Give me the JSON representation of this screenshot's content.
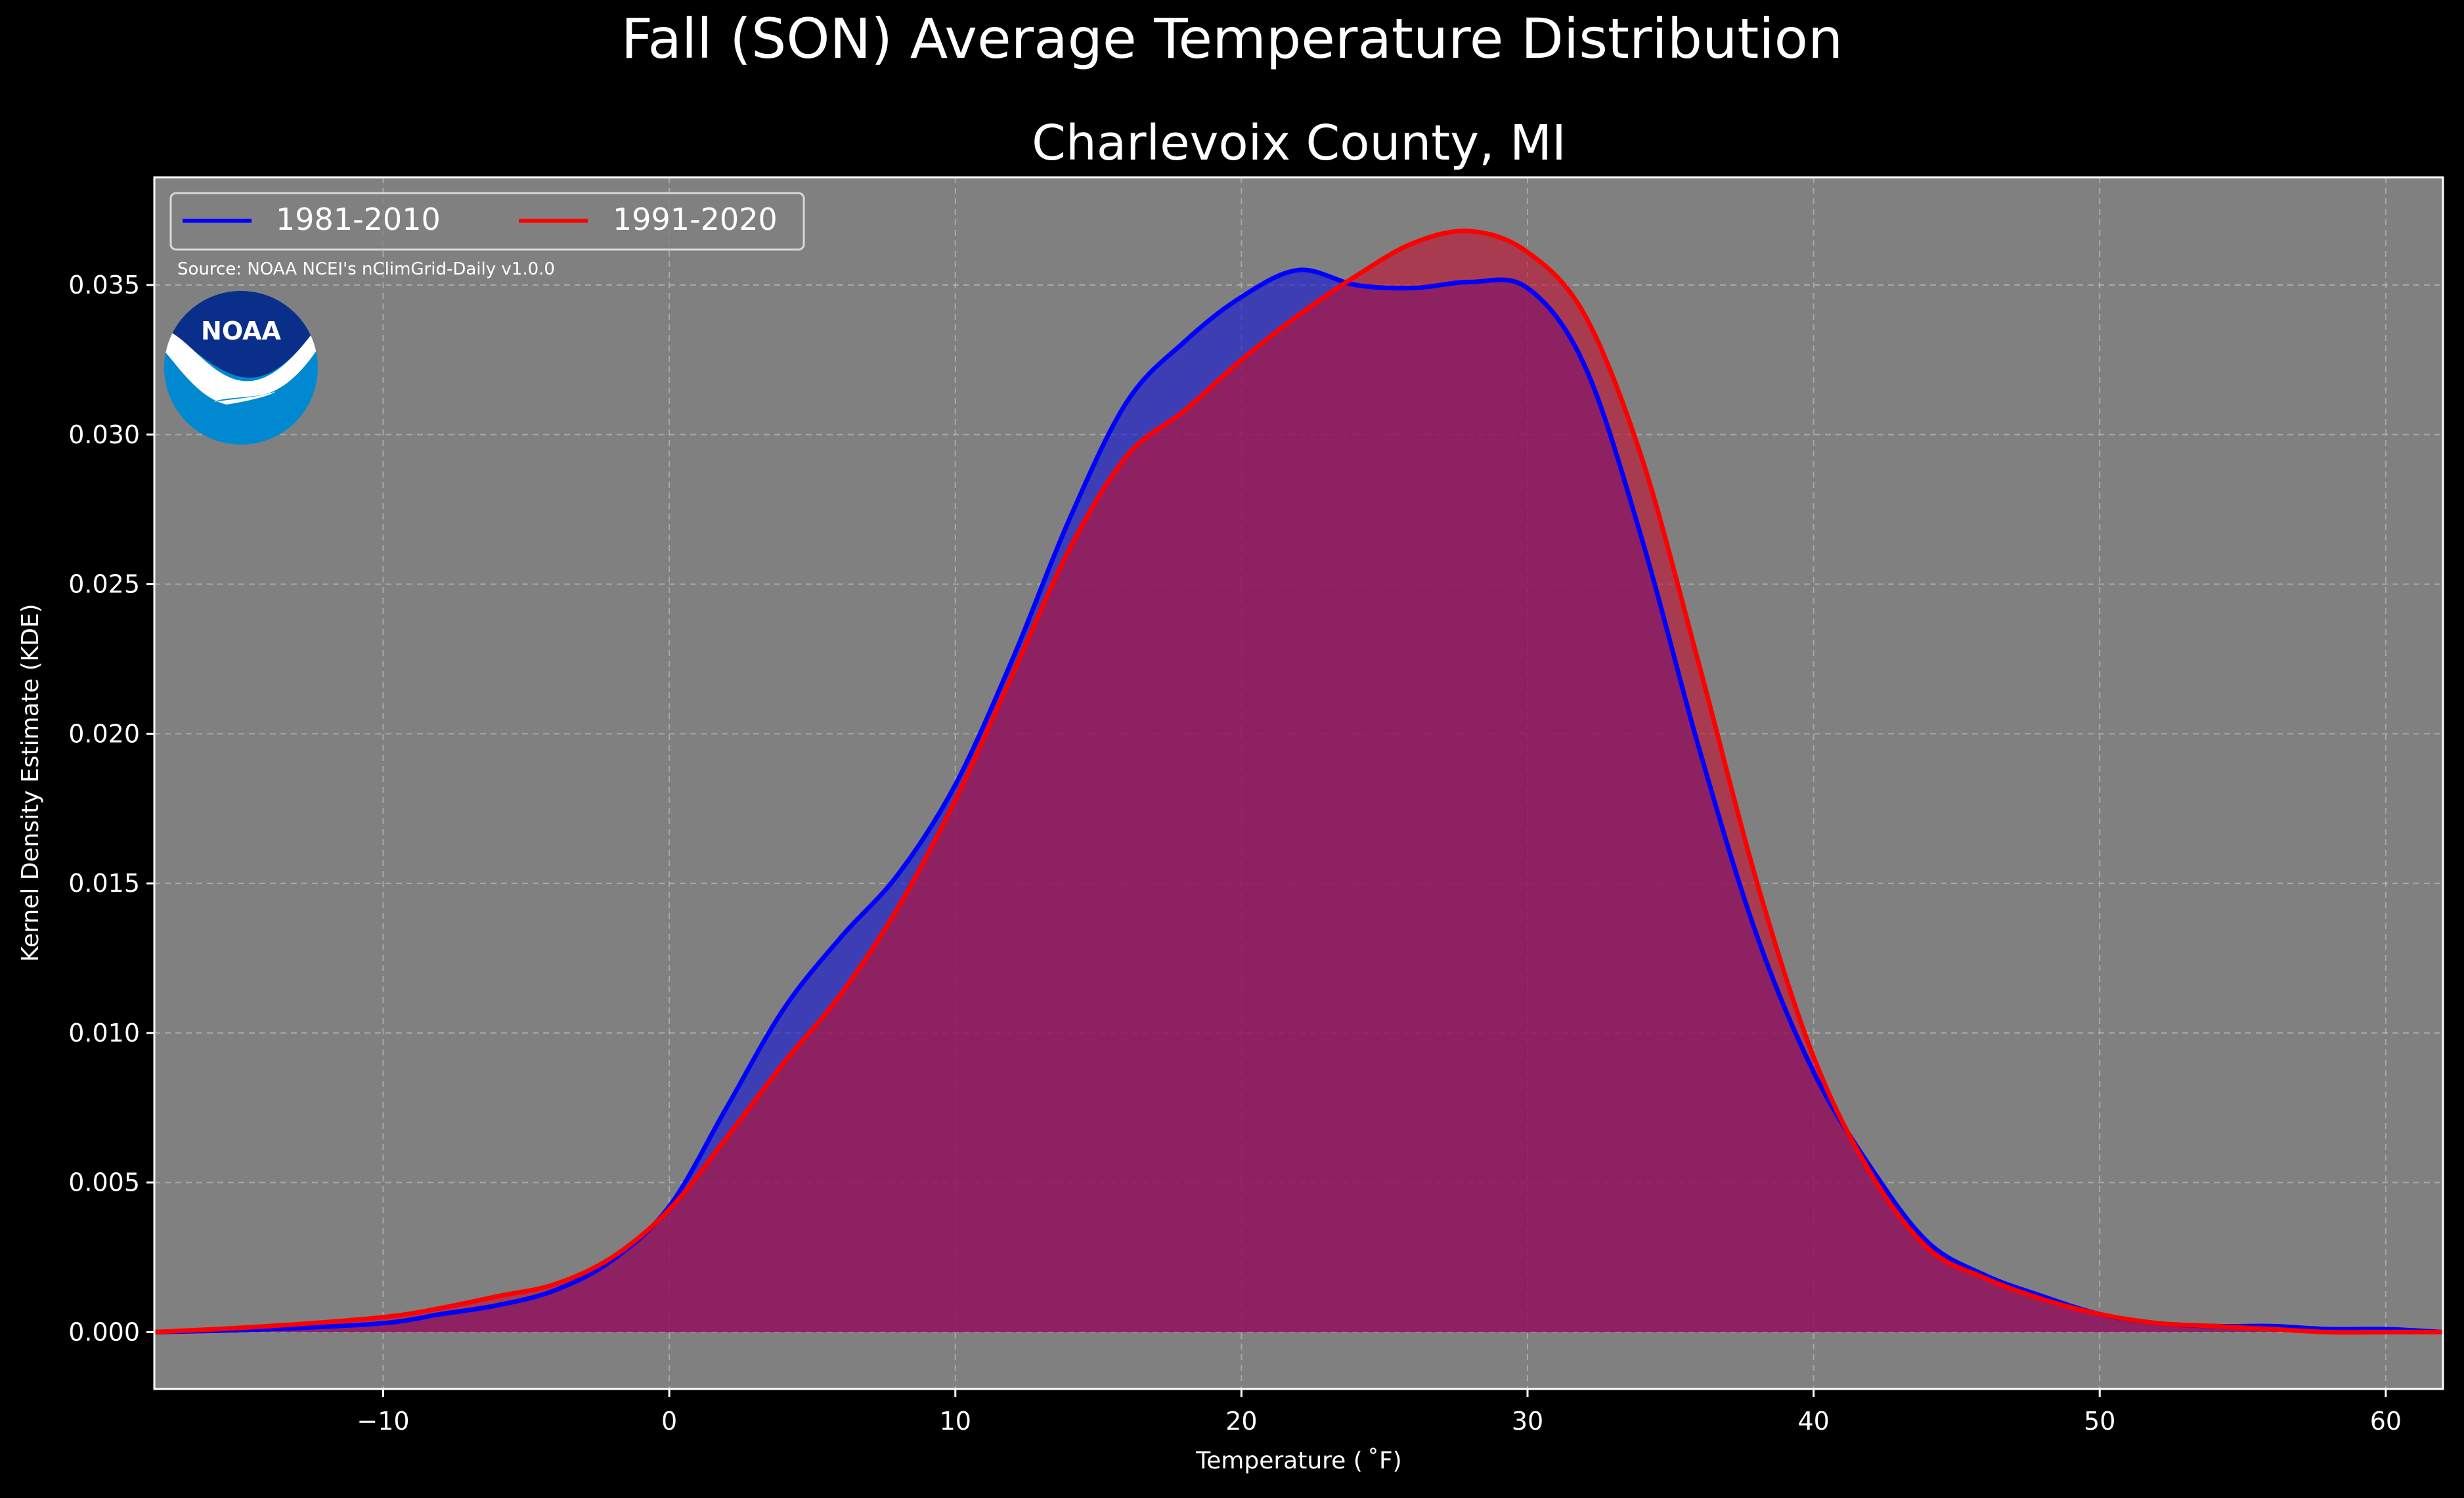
{
  "figure": {
    "suptitle": "Fall (SON) Average Temperature Distribution",
    "source_note": "Source: NOAA NCEI's nClimGrid-Daily v1.0.0",
    "logo_text": "NOAA"
  },
  "colors": {
    "figure_background": "#000000",
    "plot_background": "#808080",
    "grid": "#c8c8c8",
    "series_1": "#0000ff",
    "series_2": "#ff0000",
    "overlap_fill": "#9c1f5c",
    "logo_dark": "#0a2f8a",
    "logo_light": "#0088d1"
  },
  "chart_data": {
    "type": "area",
    "title": "Charlevoix County, MI",
    "xlabel": "Temperature ($^\\circ$F)",
    "xlabel_display": "Temperature ( ˚F)",
    "ylabel": "Kernel Density Estimate (KDE)",
    "xlim": [
      -18,
      62
    ],
    "ylim": [
      -0.0019,
      0.0386
    ],
    "grid": true,
    "legend_position": "top-left",
    "x_ticks": [
      -10,
      0,
      10,
      20,
      30,
      40,
      50,
      60
    ],
    "x_tick_labels": [
      "−10",
      "0",
      "10",
      "20",
      "30",
      "40",
      "50",
      "60"
    ],
    "y_ticks": [
      0.0,
      0.005,
      0.01,
      0.015,
      0.02,
      0.025,
      0.03,
      0.035
    ],
    "y_tick_labels": [
      "0.000",
      "0.005",
      "0.010",
      "0.015",
      "0.020",
      "0.025",
      "0.030",
      "0.035"
    ],
    "series": [
      {
        "name": "1981-2010",
        "color": "#0000ff",
        "x": [
          -18,
          -14,
          -10,
          -8,
          -6,
          -4,
          -2,
          0,
          2,
          4,
          6,
          8,
          10,
          12,
          14,
          16,
          18,
          20,
          22,
          24,
          26,
          28,
          30,
          32,
          34,
          36,
          38,
          40,
          42,
          44,
          46,
          48,
          50,
          52,
          54,
          56,
          58,
          60,
          62
        ],
        "y": [
          0.0,
          0.0001,
          0.0003,
          0.0006,
          0.0009,
          0.0014,
          0.0024,
          0.0042,
          0.0075,
          0.0108,
          0.0132,
          0.0153,
          0.0183,
          0.0225,
          0.0272,
          0.0311,
          0.0331,
          0.0346,
          0.0355,
          0.035,
          0.0349,
          0.0351,
          0.0349,
          0.0323,
          0.0265,
          0.0195,
          0.0133,
          0.0087,
          0.0055,
          0.003,
          0.0019,
          0.0012,
          0.0006,
          0.0003,
          0.0002,
          0.0002,
          0.0001,
          0.0001,
          0.0
        ]
      },
      {
        "name": "1991-2020",
        "color": "#ff0000",
        "x": [
          -18,
          -14,
          -10,
          -8,
          -6,
          -4,
          -2,
          0,
          2,
          4,
          6,
          8,
          10,
          12,
          14,
          16,
          18,
          20,
          22,
          24,
          26,
          28,
          30,
          32,
          34,
          36,
          38,
          40,
          42,
          44,
          46,
          48,
          50,
          52,
          54,
          56,
          58,
          60,
          62
        ],
        "y": [
          0.0,
          0.0002,
          0.0005,
          0.0008,
          0.0012,
          0.0016,
          0.0025,
          0.0041,
          0.0065,
          0.009,
          0.0113,
          0.0142,
          0.0178,
          0.022,
          0.0262,
          0.0293,
          0.0308,
          0.0325,
          0.034,
          0.0353,
          0.0364,
          0.0368,
          0.0361,
          0.034,
          0.0292,
          0.0223,
          0.0151,
          0.0092,
          0.0053,
          0.0028,
          0.0018,
          0.0011,
          0.0006,
          0.0003,
          0.0002,
          0.0001,
          0.0,
          0.0,
          0.0
        ]
      }
    ]
  }
}
